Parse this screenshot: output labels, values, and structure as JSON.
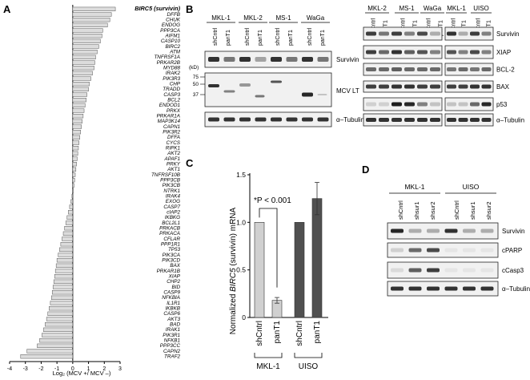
{
  "panels": {
    "A": {
      "letter": "A",
      "chart_data": {
        "type": "bar",
        "orientation": "horizontal",
        "categories": [
          "BIRC5 (survivin)",
          "DFFB",
          "CHUK",
          "ENDOG",
          "PPP3CA",
          "AIFM1",
          "CASP10",
          "BIRC2",
          "ATM",
          "TNFRSF1A",
          "PRKAR2B",
          "MYD88",
          "IRAK2",
          "PIK3R3",
          "CHP",
          "TRADD",
          "CASP3",
          "BCL2",
          "ENDOD1",
          "PRKX",
          "PRKAR1A",
          "MAP3K14",
          "CAPN1",
          "PIK3R2",
          "DFFA",
          "CYCS",
          "RIPK1",
          "AKT2",
          "APAF1",
          "PRKY",
          "AKT1",
          "TNFRSF10B",
          "PPP3CB",
          "PIK3CB",
          "NTRK1",
          "IRAK4",
          "EXOG",
          "CASP7",
          "cIAP2",
          "IKBKG",
          "BCL2L1",
          "PRKACB",
          "PRKACA",
          "CFLAR",
          "PPP1R1",
          "TP53",
          "PIK3CA",
          "PIK3CD",
          "BAX",
          "PRKAR1B",
          "XIAP",
          "CHP2",
          "BID",
          "CASP9",
          "NFKBIA",
          "IL1R1",
          "IKBKB",
          "CASP6",
          "AKT3",
          "BAD",
          "IRAK1",
          "PIK3R1",
          "NFKB1",
          "PPP3CC",
          "CAPN2",
          "TRAF2"
        ],
        "values": [
          2.7,
          2.45,
          2.35,
          2.2,
          1.9,
          1.85,
          1.75,
          1.65,
          1.55,
          1.45,
          1.4,
          1.35,
          1.25,
          1.15,
          1.05,
          1.0,
          0.9,
          0.85,
          0.78,
          0.72,
          0.66,
          0.6,
          0.55,
          0.5,
          0.45,
          0.4,
          0.36,
          0.32,
          0.28,
          0.24,
          0.2,
          0.16,
          0.12,
          0.08,
          0.04,
          -0.05,
          -0.12,
          -0.2,
          -0.28,
          -0.36,
          -0.44,
          -0.52,
          -0.6,
          -0.68,
          -0.76,
          -0.84,
          -0.92,
          -1.0,
          -1.05,
          -1.1,
          -1.15,
          -1.2,
          -1.25,
          -1.3,
          -1.35,
          -1.42,
          -1.5,
          -1.58,
          -1.66,
          -1.75,
          -1.85,
          -1.95,
          -2.1,
          -2.25,
          -2.9,
          -3.3
        ],
        "xticks": [
          "-4",
          "-3",
          "-2",
          "-1",
          "0",
          "1",
          "2",
          "3"
        ],
        "xlim": [
          -4,
          3
        ],
        "xlabel": "Log₂ (MCV +/ MCV –)",
        "highlight": "BIRC5 (survivin)",
        "bar_color": "#dcdcdc"
      }
    },
    "B": {
      "letter": "B",
      "left_groups": [
        "MKL-1",
        "MKL-2",
        "MS-1",
        "WaGa"
      ],
      "right_groups": [
        "MKL-2",
        "MS-1",
        "WaGa"
      ],
      "right2_groups": [
        "MKL-1",
        "UISO"
      ],
      "lanes": [
        "shCntrl",
        "panT1"
      ],
      "kd_label": "(kD)",
      "kd_markers": [
        "75",
        "50",
        "37"
      ],
      "left_labels": [
        "Survivin",
        "MCV LT",
        "α–Tubulin"
      ],
      "right_labels": [
        "Survivin",
        "XIAP",
        "BCL-2",
        "BAX",
        "p53",
        "α–Tubulin"
      ]
    },
    "C": {
      "letter": "C",
      "chart_data": {
        "type": "bar",
        "categories": [
          "shCntrl",
          "panT1",
          "shCntrl",
          "panT1"
        ],
        "groups": [
          "MKL-1",
          "UISO"
        ],
        "values": [
          1.0,
          0.18,
          1.0,
          1.25
        ],
        "errors": [
          0,
          0.03,
          0,
          0.17
        ],
        "colors": [
          "#d0d0d0",
          "#d0d0d0",
          "#505050",
          "#505050"
        ],
        "ylim": [
          0,
          1.5
        ],
        "yticks": [
          "0",
          "0.5",
          "1.0",
          "1.5"
        ],
        "ylabel_pre": "Normalized ",
        "ylabel_italic": "BIRC5",
        "ylabel_post": " (survivin) mRNA",
        "annotation": "*P < 0.001"
      }
    },
    "D": {
      "letter": "D",
      "groups": [
        "MKL-1",
        "UISO"
      ],
      "lanes": [
        "shCntrl",
        "shsur1",
        "shsur2"
      ],
      "labels": [
        "Survivin",
        "cPARP",
        "cCasp3",
        "α–Tubulin"
      ]
    }
  }
}
